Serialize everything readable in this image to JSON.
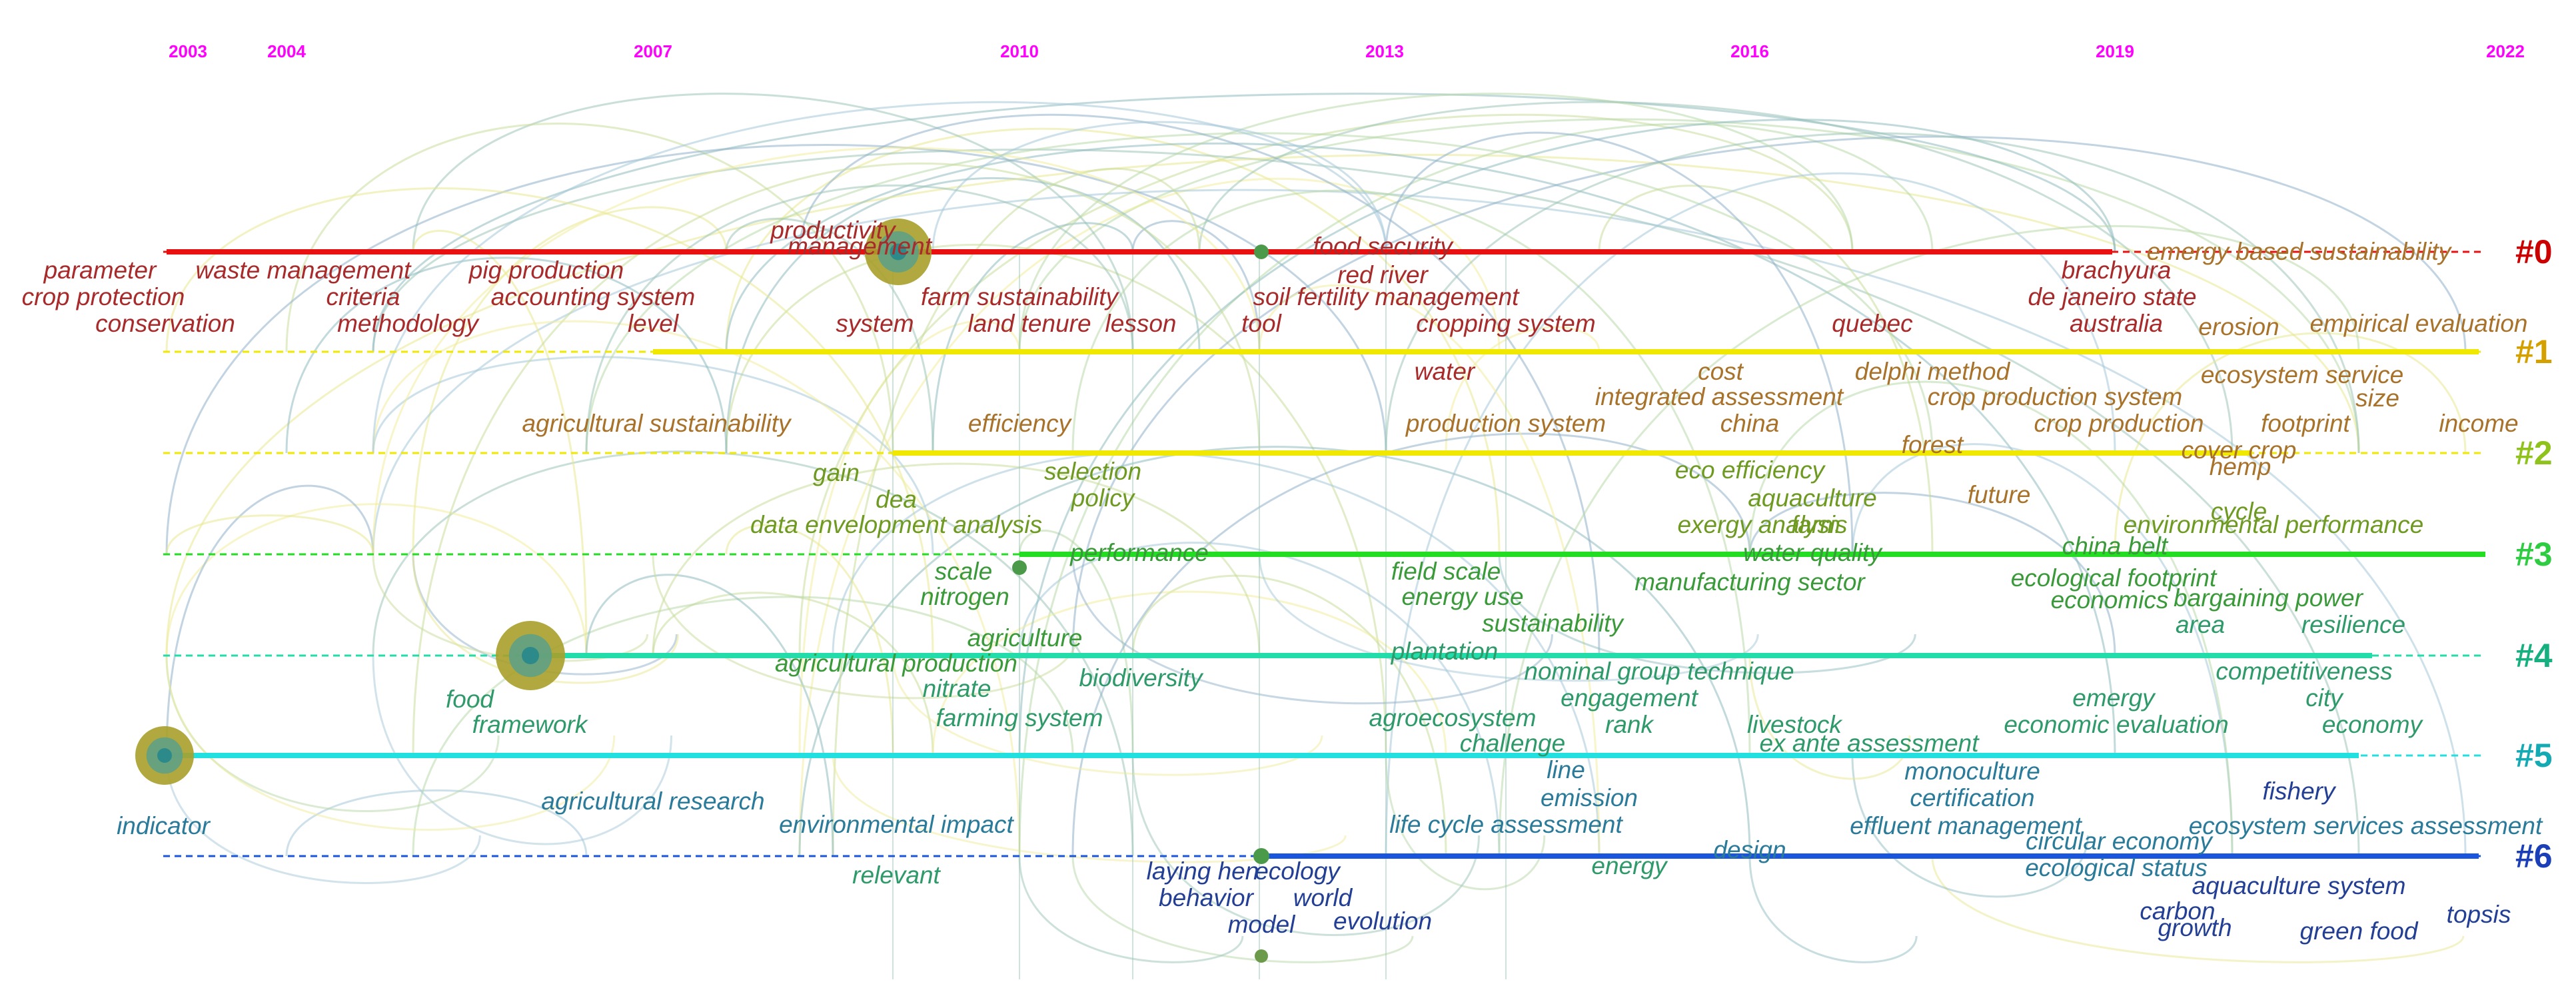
{
  "years": [
    "2003",
    "2004",
    "2007",
    "2010",
    "2013",
    "2016",
    "2019",
    "2022"
  ],
  "clusters": [
    {
      "label": "#0",
      "color": "#cc0000",
      "line": "#e81010"
    },
    {
      "label": "#1",
      "color": "#d4a000",
      "line": "#f0e800"
    },
    {
      "label": "#2",
      "color": "#8fc21a",
      "line": "#f0e800"
    },
    {
      "label": "#3",
      "color": "#2ecc40",
      "line": "#22dd22"
    },
    {
      "label": "#4",
      "color": "#16b080",
      "line": "#22ddaa"
    },
    {
      "label": "#5",
      "color": "#14aab4",
      "line": "#22e0e0"
    },
    {
      "label": "#6",
      "color": "#1a3fb8",
      "line": "#1a55dd"
    }
  ],
  "colors": {
    "cluster0_text": "#a82a2a",
    "cluster1_text": "#a8722a",
    "cluster2_text": "#6e9a22",
    "cluster3_text": "#3a9a3a",
    "cluster4_text": "#2e9a6a",
    "cluster5_text": "#2a7a9a",
    "cluster6_text": "#233f95",
    "year_label": "#ff00ff"
  },
  "keywords": [
    {
      "text": "parameter",
      "c": "cluster0_text"
    },
    {
      "text": "crop protection",
      "c": "cluster0_text"
    },
    {
      "text": "conservation",
      "c": "cluster0_text"
    },
    {
      "text": "waste management",
      "c": "cluster0_text"
    },
    {
      "text": "criteria",
      "c": "cluster0_text"
    },
    {
      "text": "methodology",
      "c": "cluster0_text"
    },
    {
      "text": "pig production",
      "c": "cluster0_text"
    },
    {
      "text": "accounting system",
      "c": "cluster0_text"
    },
    {
      "text": "level",
      "c": "cluster0_text"
    },
    {
      "text": "productivity",
      "c": "cluster0_text"
    },
    {
      "text": "management",
      "c": "cluster0_text"
    },
    {
      "text": "farm sustainability",
      "c": "cluster0_text"
    },
    {
      "text": "system",
      "c": "cluster0_text"
    },
    {
      "text": "land tenure",
      "c": "cluster0_text"
    },
    {
      "text": "lesson",
      "c": "cluster0_text"
    },
    {
      "text": "tool",
      "c": "cluster0_text"
    },
    {
      "text": "red river",
      "c": "cluster0_text"
    },
    {
      "text": "food security",
      "c": "cluster0_text"
    },
    {
      "text": "soil fertility management",
      "c": "cluster0_text"
    },
    {
      "text": "cropping system",
      "c": "cluster0_text"
    },
    {
      "text": "quebec",
      "c": "cluster0_text"
    },
    {
      "text": "brachyura",
      "c": "cluster0_text"
    },
    {
      "text": "de janeiro state",
      "c": "cluster0_text"
    },
    {
      "text": "australia",
      "c": "cluster0_text"
    },
    {
      "text": "emergy based sustainability",
      "c": "cluster1_text"
    },
    {
      "text": "erosion",
      "c": "cluster1_text"
    },
    {
      "text": "empirical evaluation",
      "c": "cluster1_text"
    },
    {
      "text": "water",
      "c": "cluster0_text"
    },
    {
      "text": "cost",
      "c": "cluster1_text"
    },
    {
      "text": "delphi method",
      "c": "cluster1_text"
    },
    {
      "text": "integrated assessment",
      "c": "cluster1_text"
    },
    {
      "text": "crop production system",
      "c": "cluster1_text"
    },
    {
      "text": "ecosystem service",
      "c": "cluster1_text"
    },
    {
      "text": "agricultural sustainability",
      "c": "cluster1_text"
    },
    {
      "text": "efficiency",
      "c": "cluster1_text"
    },
    {
      "text": "production system",
      "c": "cluster1_text"
    },
    {
      "text": "china",
      "c": "cluster1_text"
    },
    {
      "text": "crop production",
      "c": "cluster1_text"
    },
    {
      "text": "size",
      "c": "cluster1_text"
    },
    {
      "text": "footprint",
      "c": "cluster1_text"
    },
    {
      "text": "income",
      "c": "cluster1_text"
    },
    {
      "text": "forest",
      "c": "cluster1_text"
    },
    {
      "text": "cover crop",
      "c": "cluster1_text"
    },
    {
      "text": "hemp",
      "c": "cluster1_text"
    },
    {
      "text": "gain",
      "c": "cluster2_text"
    },
    {
      "text": "selection",
      "c": "cluster2_text"
    },
    {
      "text": "dea",
      "c": "cluster2_text"
    },
    {
      "text": "policy",
      "c": "cluster2_text"
    },
    {
      "text": "eco efficiency",
      "c": "cluster2_text"
    },
    {
      "text": "aquaculture",
      "c": "cluster2_text"
    },
    {
      "text": "future",
      "c": "cluster1_text"
    },
    {
      "text": "cycle",
      "c": "cluster2_text"
    },
    {
      "text": "data envelopment analysis",
      "c": "cluster2_text"
    },
    {
      "text": "exergy analysis",
      "c": "cluster2_text"
    },
    {
      "text": "farm",
      "c": "cluster2_text"
    },
    {
      "text": "environmental performance",
      "c": "cluster2_text"
    },
    {
      "text": "performance",
      "c": "cluster3_text"
    },
    {
      "text": "water quality",
      "c": "cluster3_text"
    },
    {
      "text": "china belt",
      "c": "cluster3_text"
    },
    {
      "text": "scale",
      "c": "cluster3_text"
    },
    {
      "text": "field scale",
      "c": "cluster3_text"
    },
    {
      "text": "nitrogen",
      "c": "cluster3_text"
    },
    {
      "text": "manufacturing sector",
      "c": "cluster3_text"
    },
    {
      "text": "ecological footprint",
      "c": "cluster3_text"
    },
    {
      "text": "energy use",
      "c": "cluster3_text"
    },
    {
      "text": "economics",
      "c": "cluster3_text"
    },
    {
      "text": "bargaining power",
      "c": "cluster3_text"
    },
    {
      "text": "agriculture",
      "c": "cluster3_text"
    },
    {
      "text": "sustainability",
      "c": "cluster3_text"
    },
    {
      "text": "area",
      "c": "cluster4_text"
    },
    {
      "text": "resilience",
      "c": "cluster4_text"
    },
    {
      "text": "agricultural production",
      "c": "cluster3_text"
    },
    {
      "text": "plantation",
      "c": "cluster4_text"
    },
    {
      "text": "nitrate",
      "c": "cluster4_text"
    },
    {
      "text": "biodiversity",
      "c": "cluster4_text"
    },
    {
      "text": "nominal group technique",
      "c": "cluster4_text"
    },
    {
      "text": "competitiveness",
      "c": "cluster4_text"
    },
    {
      "text": "food",
      "c": "cluster4_text"
    },
    {
      "text": "engagement",
      "c": "cluster4_text"
    },
    {
      "text": "emergy",
      "c": "cluster4_text"
    },
    {
      "text": "city",
      "c": "cluster4_text"
    },
    {
      "text": "framework",
      "c": "cluster4_text"
    },
    {
      "text": "farming system",
      "c": "cluster4_text"
    },
    {
      "text": "agroecosystem",
      "c": "cluster4_text"
    },
    {
      "text": "rank",
      "c": "cluster4_text"
    },
    {
      "text": "livestock",
      "c": "cluster4_text"
    },
    {
      "text": "economic evaluation",
      "c": "cluster4_text"
    },
    {
      "text": "economy",
      "c": "cluster4_text"
    },
    {
      "text": "challenge",
      "c": "cluster4_text"
    },
    {
      "text": "ex ante assessment",
      "c": "cluster4_text"
    },
    {
      "text": "line",
      "c": "cluster5_text"
    },
    {
      "text": "monoculture",
      "c": "cluster5_text"
    },
    {
      "text": "emission",
      "c": "cluster5_text"
    },
    {
      "text": "certification",
      "c": "cluster5_text"
    },
    {
      "text": "fishery",
      "c": "cluster6_text"
    },
    {
      "text": "agricultural research",
      "c": "cluster5_text"
    },
    {
      "text": "indicator",
      "c": "cluster5_text"
    },
    {
      "text": "environmental impact",
      "c": "cluster5_text"
    },
    {
      "text": "life cycle assessment",
      "c": "cluster5_text"
    },
    {
      "text": "effluent management",
      "c": "cluster5_text"
    },
    {
      "text": "ecosystem services assessment",
      "c": "cluster5_text"
    },
    {
      "text": "design",
      "c": "cluster5_text"
    },
    {
      "text": "circular economy",
      "c": "cluster5_text"
    },
    {
      "text": "energy",
      "c": "cluster4_text"
    },
    {
      "text": "ecological status",
      "c": "cluster5_text"
    },
    {
      "text": "relevant",
      "c": "cluster4_text"
    },
    {
      "text": "laying hen",
      "c": "cluster6_text"
    },
    {
      "text": "ecology",
      "c": "cluster6_text"
    },
    {
      "text": "aquaculture system",
      "c": "cluster6_text"
    },
    {
      "text": "behavior",
      "c": "cluster6_text"
    },
    {
      "text": "world",
      "c": "cluster6_text"
    },
    {
      "text": "carbon",
      "c": "cluster6_text"
    },
    {
      "text": "topsis",
      "c": "cluster6_text"
    },
    {
      "text": "model",
      "c": "cluster6_text"
    },
    {
      "text": "evolution",
      "c": "cluster6_text"
    },
    {
      "text": "growth",
      "c": "cluster6_text"
    },
    {
      "text": "green food",
      "c": "cluster6_text"
    }
  ]
}
